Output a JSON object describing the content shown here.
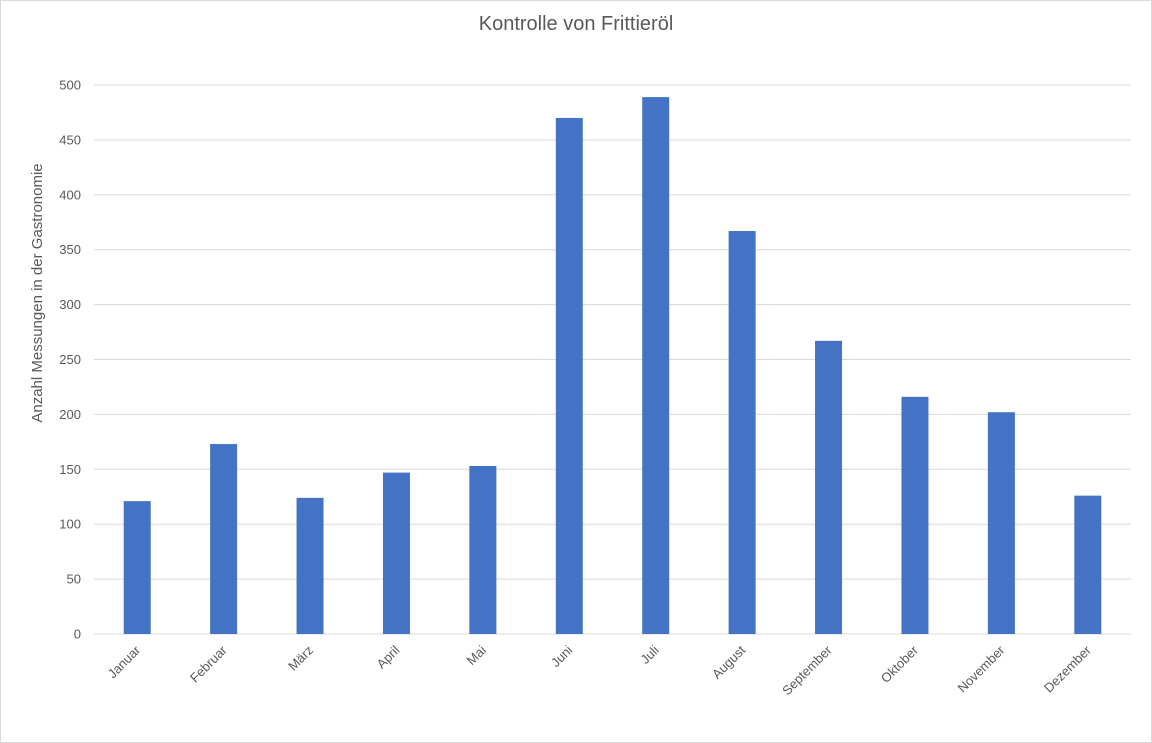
{
  "chart_data": {
    "type": "bar",
    "title": "Kontrolle von Frittieröl",
    "xlabel": "",
    "ylabel": "Anzahl Messungen in der Gastronomie",
    "categories": [
      "Januar",
      "Februar",
      "März",
      "April",
      "Mai",
      "Juni",
      "Juli",
      "August",
      "September",
      "Oktober",
      "November",
      "Dezember"
    ],
    "values": [
      121,
      173,
      124,
      147,
      153,
      470,
      489,
      367,
      267,
      216,
      202,
      126
    ],
    "ylim": [
      0,
      500
    ],
    "yticks": [
      0,
      50,
      100,
      150,
      200,
      250,
      300,
      350,
      400,
      450,
      500
    ],
    "grid": true,
    "bar_color": "#4472c4",
    "grid_color": "#d9d9d9",
    "text_color": "#595959"
  }
}
